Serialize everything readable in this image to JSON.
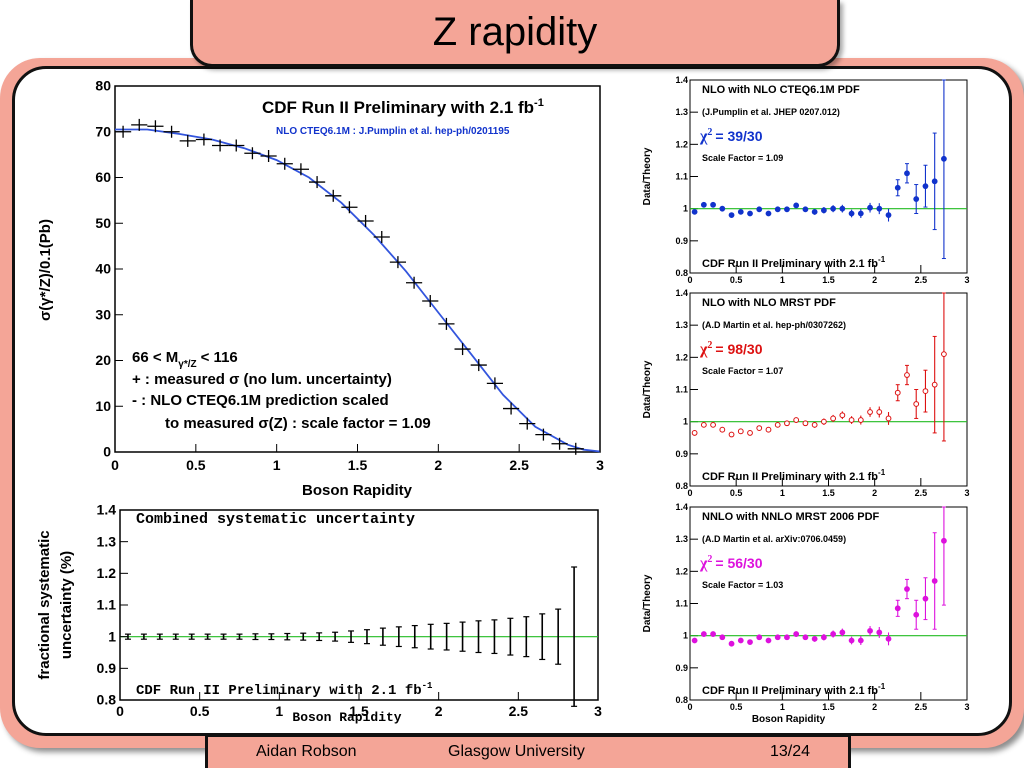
{
  "slide": {
    "title": "Z rapidity",
    "footer": {
      "author": "Aidan Robson",
      "institution": "Glasgow University",
      "page": "13/24"
    }
  },
  "colors": {
    "pink": "#f4a597",
    "fit_blue": "#3355dd",
    "unity_green": "#22bb22",
    "cteq_blue": "#1133cc",
    "mrst_red": "#dd1111",
    "nnlo_magenta": "#dd11dd"
  },
  "chart_data": [
    {
      "id": "main",
      "type": "scatter",
      "title": "CDF Run II Preliminary with 2.1 fb",
      "title_sup": "-1",
      "subtitle": "NLO CTEQ6.1M : J.Pumplin et al. hep-ph/0201195",
      "xlabel": "Boson Rapidity",
      "ylabel": "σ(γ*/Z)/0.1(Pb)",
      "xlim": [
        0,
        3
      ],
      "ylim": [
        0,
        80
      ],
      "xticks": [
        0,
        0.5,
        1,
        1.5,
        2,
        2.5,
        3
      ],
      "xtick_labels": [
        "0",
        "0.5",
        "1",
        "1.5",
        "2",
        "2.5",
        "3"
      ],
      "yticks": [
        0,
        10,
        20,
        30,
        40,
        50,
        60,
        70,
        80
      ],
      "ytick_labels": [
        "0",
        "10",
        "20",
        "30",
        "40",
        "50",
        "60",
        "70",
        "80"
      ],
      "series": [
        {
          "kind": "measured",
          "x": [
            0.05,
            0.15,
            0.25,
            0.35,
            0.45,
            0.55,
            0.65,
            0.75,
            0.85,
            0.95,
            1.05,
            1.15,
            1.25,
            1.35,
            1.45,
            1.55,
            1.65,
            1.75,
            1.85,
            1.95,
            2.05,
            2.15,
            2.25,
            2.35,
            2.45,
            2.55,
            2.65,
            2.75,
            2.85
          ],
          "y": [
            70.0,
            71.5,
            71.2,
            70.0,
            68.0,
            68.3,
            67.0,
            67.0,
            65.3,
            64.7,
            63.0,
            61.8,
            59.0,
            56.0,
            53.5,
            50.5,
            47.0,
            41.5,
            37.0,
            33.0,
            28.0,
            22.5,
            19.0,
            15.0,
            9.5,
            6.2,
            3.8,
            1.8,
            0.7
          ]
        },
        {
          "kind": "prediction",
          "x": [
            0,
            0.2,
            0.4,
            0.6,
            0.8,
            1.0,
            1.2,
            1.4,
            1.6,
            1.8,
            2.0,
            2.2,
            2.4,
            2.6,
            2.8,
            2.9,
            3.0
          ],
          "y": [
            70.5,
            70.5,
            69.5,
            68.3,
            66.4,
            63.8,
            60.0,
            54.5,
            47.5,
            39.5,
            30.5,
            21.5,
            12.5,
            5.5,
            1.6,
            0.5,
            0.1
          ]
        }
      ],
      "annotations": {
        "mass_range": "66 < M",
        "mass_sub": "γ*/Z",
        "mass_tail": "< 116",
        "legend_measured": "+ : measured σ (no lum. uncertainty)",
        "legend_pred1": "- : NLO CTEQ6.1M prediction scaled",
        "legend_pred2": "to measured σ(Z) : scale factor = 1.09"
      }
    },
    {
      "id": "systematics",
      "type": "scatter",
      "title": "Combined systematic uncertainty",
      "footer_label": "CDF Run II Preliminary with 2.1 fb",
      "footer_sup": "-1",
      "xlabel": "Boson Rapidity",
      "ylabel_line1": "fractional systematic",
      "ylabel_line2": "uncertainty (%)",
      "xlim": [
        0,
        3
      ],
      "ylim": [
        0.8,
        1.4
      ],
      "xticks": [
        0,
        0.5,
        1,
        1.5,
        2,
        2.5,
        3
      ],
      "xtick_labels": [
        "0",
        "0.5",
        "1",
        "1.5",
        "2",
        "2.5",
        "3"
      ],
      "yticks": [
        0.8,
        0.9,
        1.0,
        1.1,
        1.2,
        1.3,
        1.4
      ],
      "ytick_labels": [
        "0.8",
        "0.9",
        "1",
        "1.1",
        "1.2",
        "1.3",
        "1.4"
      ],
      "reference_line": 1.0,
      "x": [
        0.05,
        0.15,
        0.25,
        0.35,
        0.45,
        0.55,
        0.65,
        0.75,
        0.85,
        0.95,
        1.05,
        1.15,
        1.25,
        1.35,
        1.45,
        1.55,
        1.65,
        1.75,
        1.85,
        1.95,
        2.05,
        2.15,
        2.25,
        2.35,
        2.45,
        2.55,
        2.65,
        2.75,
        2.85
      ],
      "err": [
        0.008,
        0.008,
        0.008,
        0.008,
        0.008,
        0.008,
        0.008,
        0.008,
        0.009,
        0.009,
        0.01,
        0.011,
        0.012,
        0.014,
        0.018,
        0.022,
        0.027,
        0.031,
        0.035,
        0.039,
        0.042,
        0.046,
        0.05,
        0.053,
        0.058,
        0.063,
        0.072,
        0.087,
        0.22
      ]
    },
    {
      "id": "ratio_cteq",
      "type": "scatter",
      "label": "NLO with NLO CTEQ6.1M PDF",
      "reference": "(J.Pumplin et al. JHEP 0207.012)",
      "chi2_value": "= 39/30",
      "scale": "Scale Factor = 1.09",
      "footer_label": "CDF Run II Preliminary with 2.1 fb",
      "footer_sup": "-1",
      "ylabel": "Data/Theory",
      "xlabel": "",
      "marker": "filled",
      "xlim": [
        0,
        3
      ],
      "ylim": [
        0.8,
        1.4
      ],
      "xticks": [
        0,
        0.5,
        1,
        1.5,
        2,
        2.5,
        3
      ],
      "xtick_labels": [
        "0",
        "0.5",
        "1",
        "1.5",
        "2",
        "2.5",
        "3"
      ],
      "yticks": [
        0.8,
        0.9,
        1.0,
        1.1,
        1.2,
        1.3,
        1.4
      ],
      "ytick_labels": [
        "0.8",
        "0.9",
        "1",
        "1.1",
        "1.2",
        "1.3",
        "1.4"
      ],
      "reference_line": 1.0,
      "x": [
        0.05,
        0.15,
        0.25,
        0.35,
        0.45,
        0.55,
        0.65,
        0.75,
        0.85,
        0.95,
        1.05,
        1.15,
        1.25,
        1.35,
        1.45,
        1.55,
        1.65,
        1.75,
        1.85,
        1.95,
        2.05,
        2.15,
        2.25,
        2.35,
        2.45,
        2.55,
        2.65,
        2.75
      ],
      "y": [
        0.99,
        1.012,
        1.012,
        1.0,
        0.98,
        0.99,
        0.985,
        0.998,
        0.985,
        0.998,
        0.998,
        1.01,
        0.998,
        0.99,
        0.995,
        1.0,
        1.0,
        0.985,
        0.985,
        1.003,
        1.0,
        0.98,
        1.065,
        1.11,
        1.03,
        1.07,
        1.085,
        1.155
      ],
      "err": [
        0.006,
        0.006,
        0.006,
        0.006,
        0.006,
        0.006,
        0.006,
        0.006,
        0.007,
        0.007,
        0.008,
        0.008,
        0.008,
        0.009,
        0.01,
        0.011,
        0.012,
        0.012,
        0.014,
        0.015,
        0.017,
        0.02,
        0.025,
        0.03,
        0.045,
        0.065,
        0.15,
        0.31
      ]
    },
    {
      "id": "ratio_mrst",
      "type": "scatter",
      "label": "NLO with NLO MRST PDF",
      "reference": "(A.D Martin et al. hep-ph/0307262)",
      "chi2_value": "= 98/30",
      "scale": "Scale Factor = 1.07",
      "footer_label": "CDF Run II Preliminary with 2.1 fb",
      "footer_sup": "-1",
      "ylabel": "Data/Theory",
      "xlabel": "",
      "marker": "open",
      "xlim": [
        0,
        3
      ],
      "ylim": [
        0.8,
        1.4
      ],
      "xticks": [
        0,
        0.5,
        1,
        1.5,
        2,
        2.5,
        3
      ],
      "xtick_labels": [
        "0",
        "0.5",
        "1",
        "1.5",
        "2",
        "2.5",
        "3"
      ],
      "yticks": [
        0.8,
        0.9,
        1.0,
        1.1,
        1.2,
        1.3,
        1.4
      ],
      "ytick_labels": [
        "0.8",
        "0.9",
        "1",
        "1.1",
        "1.2",
        "1.3",
        "1.4"
      ],
      "reference_line": 1.0,
      "x": [
        0.05,
        0.15,
        0.25,
        0.35,
        0.45,
        0.55,
        0.65,
        0.75,
        0.85,
        0.95,
        1.05,
        1.15,
        1.25,
        1.35,
        1.45,
        1.55,
        1.65,
        1.75,
        1.85,
        1.95,
        2.05,
        2.15,
        2.25,
        2.35,
        2.45,
        2.55,
        2.65,
        2.75
      ],
      "y": [
        0.965,
        0.99,
        0.99,
        0.975,
        0.96,
        0.97,
        0.965,
        0.98,
        0.975,
        0.99,
        0.995,
        1.005,
        0.995,
        0.99,
        1.0,
        1.01,
        1.02,
        1.005,
        1.005,
        1.03,
        1.03,
        1.01,
        1.09,
        1.145,
        1.055,
        1.095,
        1.115,
        1.21
      ],
      "err": [
        0.006,
        0.006,
        0.006,
        0.006,
        0.006,
        0.006,
        0.006,
        0.006,
        0.007,
        0.007,
        0.008,
        0.008,
        0.008,
        0.009,
        0.01,
        0.011,
        0.012,
        0.012,
        0.014,
        0.015,
        0.017,
        0.02,
        0.025,
        0.03,
        0.045,
        0.065,
        0.15,
        0.27
      ]
    },
    {
      "id": "ratio_nnlo",
      "type": "scatter",
      "label": "NNLO with NNLO MRST 2006 PDF",
      "reference": "(A.D Martin et al. arXiv:0706.0459)",
      "chi2_value": "= 56/30",
      "scale": "Scale Factor = 1.03",
      "footer_label": "CDF Run II Preliminary with 2.1 fb",
      "footer_sup": "-1",
      "ylabel": "Data/Theory",
      "xlabel": "Boson Rapidity",
      "marker": "filled",
      "xlim": [
        0,
        3
      ],
      "ylim": [
        0.8,
        1.4
      ],
      "xticks": [
        0,
        0.5,
        1,
        1.5,
        2,
        2.5,
        3
      ],
      "xtick_labels": [
        "0",
        "0.5",
        "1",
        "1.5",
        "2",
        "2.5",
        "3"
      ],
      "yticks": [
        0.8,
        0.9,
        1.0,
        1.1,
        1.2,
        1.3,
        1.4
      ],
      "ytick_labels": [
        "0.8",
        "0.9",
        "1",
        "1.1",
        "1.2",
        "1.3",
        "1.4"
      ],
      "reference_line": 1.0,
      "x": [
        0.05,
        0.15,
        0.25,
        0.35,
        0.45,
        0.55,
        0.65,
        0.75,
        0.85,
        0.95,
        1.05,
        1.15,
        1.25,
        1.35,
        1.45,
        1.55,
        1.65,
        1.75,
        1.85,
        1.95,
        2.05,
        2.15,
        2.25,
        2.35,
        2.45,
        2.55,
        2.65,
        2.75
      ],
      "y": [
        0.985,
        1.005,
        1.005,
        0.995,
        0.975,
        0.985,
        0.98,
        0.995,
        0.985,
        0.995,
        0.995,
        1.005,
        0.995,
        0.99,
        0.995,
        1.005,
        1.01,
        0.985,
        0.985,
        1.015,
        1.01,
        0.99,
        1.085,
        1.145,
        1.065,
        1.115,
        1.17,
        1.295
      ],
      "err": [
        0.006,
        0.006,
        0.006,
        0.006,
        0.006,
        0.006,
        0.006,
        0.006,
        0.007,
        0.007,
        0.008,
        0.008,
        0.008,
        0.009,
        0.01,
        0.011,
        0.012,
        0.012,
        0.014,
        0.015,
        0.017,
        0.02,
        0.025,
        0.03,
        0.045,
        0.065,
        0.15,
        0.2
      ]
    }
  ]
}
